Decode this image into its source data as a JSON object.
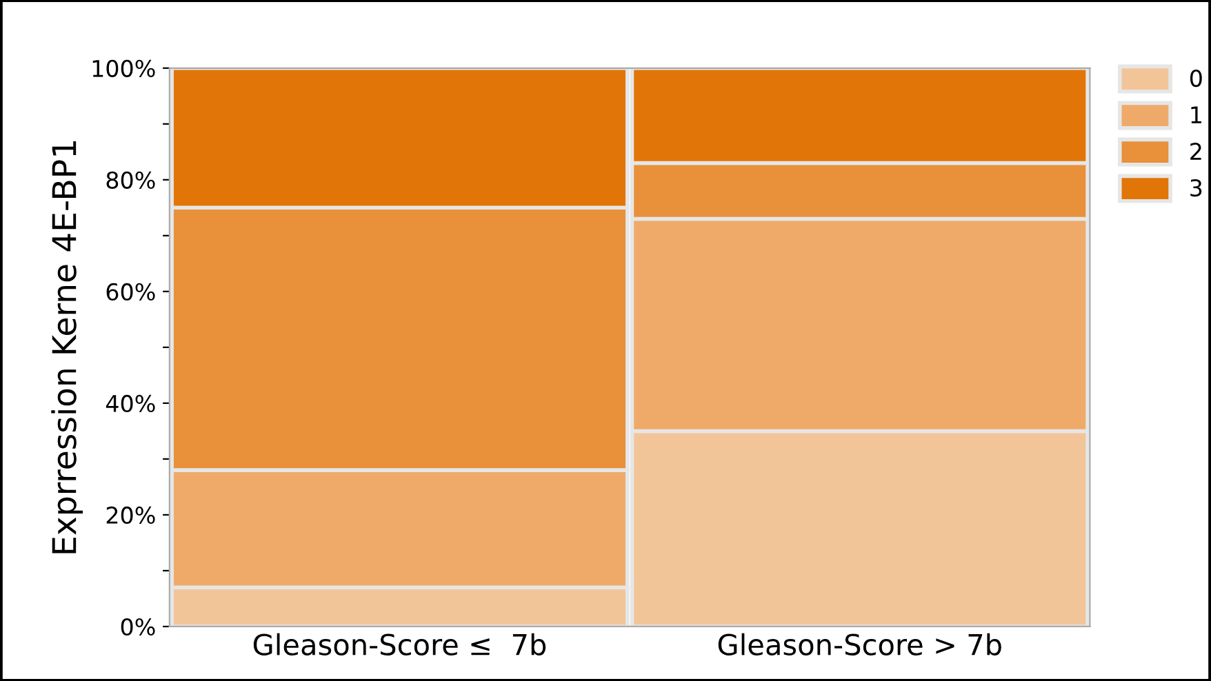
{
  "chart_data": {
    "type": "bar",
    "stacked": true,
    "ylabel": "Exprression Kerne 4E-BP1",
    "categories": [
      "Gleason-Score ≤  7b",
      "Gleason-Score > 7b"
    ],
    "series": [
      {
        "name": "0",
        "color": "#f2c599",
        "values": [
          7,
          35
        ]
      },
      {
        "name": "1",
        "color": "#efaa6a",
        "values": [
          21,
          38
        ]
      },
      {
        "name": "2",
        "color": "#e8903a",
        "values": [
          47,
          10
        ]
      },
      {
        "name": "3",
        "color": "#e27508",
        "values": [
          25,
          17
        ]
      }
    ],
    "ylim": [
      0,
      100
    ],
    "yticks": [
      {
        "value": 0,
        "label": "0%"
      },
      {
        "value": 10,
        "label": null
      },
      {
        "value": 20,
        "label": "20%"
      },
      {
        "value": 30,
        "label": null
      },
      {
        "value": 40,
        "label": "40%"
      },
      {
        "value": 50,
        "label": null
      },
      {
        "value": 60,
        "label": "60%"
      },
      {
        "value": 70,
        "label": null
      },
      {
        "value": 80,
        "label": "80%"
      },
      {
        "value": 90,
        "label": null
      },
      {
        "value": 100,
        "label": "100%"
      }
    ],
    "legend": "top right",
    "grid": false
  }
}
